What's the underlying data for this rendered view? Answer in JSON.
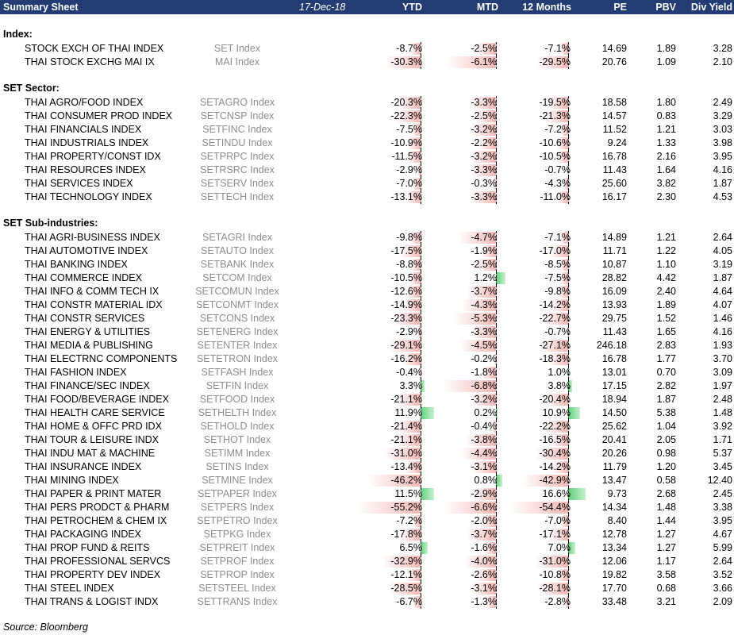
{
  "header": {
    "title": "Summary Sheet",
    "date": "17-Dec-18",
    "columns": [
      "YTD",
      "MTD",
      "12 Months",
      "PE",
      "PBV",
      "Div Yield"
    ]
  },
  "sections": [
    {
      "title": "Index:",
      "rows": [
        {
          "name": "STOCK EXCH OF THAI INDEX",
          "ticker": "SET Index",
          "ytd": -8.7,
          "mtd": -2.5,
          "m12": -7.1,
          "pe": "14.69",
          "pbv": "1.89",
          "dy": "3.28"
        },
        {
          "name": "THAI STOCK EXCHG MAI IX",
          "ticker": "MAI Index",
          "ytd": -30.3,
          "mtd": -6.1,
          "m12": -29.5,
          "pe": "20.76",
          "pbv": "1.09",
          "dy": "2.10"
        }
      ]
    },
    {
      "title": "SET Sector:",
      "rows": [
        {
          "name": "THAI AGRO/FOOD INDEX",
          "ticker": "SETAGRO Index",
          "ytd": -20.3,
          "mtd": -3.3,
          "m12": -19.5,
          "pe": "18.58",
          "pbv": "1.80",
          "dy": "2.49"
        },
        {
          "name": "THAI CONSUMER PROD INDEX",
          "ticker": "SETCNSP Index",
          "ytd": -22.3,
          "mtd": -2.5,
          "m12": -21.3,
          "pe": "14.57",
          "pbv": "0.83",
          "dy": "3.29"
        },
        {
          "name": "THAI FINANCIALS INDEX",
          "ticker": "SETFINC Index",
          "ytd": -7.5,
          "mtd": -3.2,
          "m12": -7.2,
          "pe": "11.52",
          "pbv": "1.21",
          "dy": "3.03"
        },
        {
          "name": "THAI INDUSTRIALS INDEX",
          "ticker": "SETINDU Index",
          "ytd": -10.9,
          "mtd": -2.2,
          "m12": -10.6,
          "pe": "9.24",
          "pbv": "1.33",
          "dy": "3.98"
        },
        {
          "name": "THAI PROPERTY/CONST IDX",
          "ticker": "SETPRPC Index",
          "ytd": -11.5,
          "mtd": -3.2,
          "m12": -10.5,
          "pe": "16.78",
          "pbv": "2.16",
          "dy": "3.95"
        },
        {
          "name": "THAI RESOURCES INDEX",
          "ticker": "SETRSRC Index",
          "ytd": -2.9,
          "mtd": -3.3,
          "m12": -0.7,
          "pe": "11.43",
          "pbv": "1.64",
          "dy": "4.16"
        },
        {
          "name": "THAI SERVICES INDEX",
          "ticker": "SETSERV Index",
          "ytd": -7.0,
          "mtd": -0.3,
          "m12": -4.3,
          "pe": "25.60",
          "pbv": "3.82",
          "dy": "1.87"
        },
        {
          "name": "THAI TECHNOLOGY INDEX",
          "ticker": "SETTECH Index",
          "ytd": -13.1,
          "mtd": -3.3,
          "m12": -11.0,
          "pe": "16.17",
          "pbv": "2.30",
          "dy": "4.53"
        }
      ]
    },
    {
      "title": "SET Sub-industries:",
      "rows": [
        {
          "name": "THAI AGRI-BUSINESS INDEX",
          "ticker": "SETAGRI Index",
          "ytd": -9.8,
          "mtd": -4.7,
          "m12": -7.1,
          "pe": "14.89",
          "pbv": "1.21",
          "dy": "2.64"
        },
        {
          "name": "THAI AUTOMOTIVE INDEX",
          "ticker": "SETAUTO Index",
          "ytd": -17.5,
          "mtd": -1.9,
          "m12": -17.0,
          "pe": "11.71",
          "pbv": "1.22",
          "dy": "4.05"
        },
        {
          "name": "THAI BANKING INDEX",
          "ticker": "SETBANK Index",
          "ytd": -8.8,
          "mtd": -2.5,
          "m12": -8.5,
          "pe": "10.87",
          "pbv": "1.10",
          "dy": "3.19"
        },
        {
          "name": "THAI COMMERCE INDEX",
          "ticker": "SETCOM Index",
          "ytd": -10.5,
          "mtd": 1.2,
          "m12": -7.5,
          "pe": "28.82",
          "pbv": "4.42",
          "dy": "1.87"
        },
        {
          "name": "THAI INFO & COMM TECH IX",
          "ticker": "SETCOMUN Index",
          "ytd": -12.6,
          "mtd": -3.7,
          "m12": -9.8,
          "pe": "16.09",
          "pbv": "2.40",
          "dy": "4.64"
        },
        {
          "name": "THAI CONSTR MATERIAL IDX",
          "ticker": "SETCONMT Index",
          "ytd": -14.9,
          "mtd": -4.3,
          "m12": -14.2,
          "pe": "13.93",
          "pbv": "1.89",
          "dy": "4.07"
        },
        {
          "name": "THAI CONSTR SERVICES",
          "ticker": "SETCONS Index",
          "ytd": -23.3,
          "mtd": -5.3,
          "m12": -22.7,
          "pe": "29.75",
          "pbv": "1.52",
          "dy": "1.46"
        },
        {
          "name": "THAI ENERGY & UTILITIES",
          "ticker": "SETENERG Index",
          "ytd": -2.9,
          "mtd": -3.3,
          "m12": -0.7,
          "pe": "11.43",
          "pbv": "1.65",
          "dy": "4.16"
        },
        {
          "name": "THAI MEDIA & PUBLISHING",
          "ticker": "SETENTER Index",
          "ytd": -29.1,
          "mtd": -4.5,
          "m12": -27.1,
          "pe": "246.18",
          "pbv": "2.83",
          "dy": "1.93"
        },
        {
          "name": "THAI ELECTRNC COMPONENTS",
          "ticker": "SETETRON Index",
          "ytd": -16.2,
          "mtd": -0.2,
          "m12": -18.3,
          "pe": "16.78",
          "pbv": "1.77",
          "dy": "3.70"
        },
        {
          "name": "THAI FASHION INDEX",
          "ticker": "SETFASH Index",
          "ytd": -0.4,
          "mtd": -1.8,
          "m12": 1.0,
          "pe": "13.01",
          "pbv": "0.70",
          "dy": "3.09"
        },
        {
          "name": "THAI FINANCE/SEC INDEX",
          "ticker": "SETFIN Index",
          "ytd": 3.3,
          "mtd": -6.8,
          "m12": 3.8,
          "pe": "17.15",
          "pbv": "2.82",
          "dy": "1.97"
        },
        {
          "name": "THAI FOOD/BEVERAGE INDEX",
          "ticker": "SETFOOD Index",
          "ytd": -21.1,
          "mtd": -3.2,
          "m12": -20.4,
          "pe": "18.94",
          "pbv": "1.87",
          "dy": "2.48"
        },
        {
          "name": "THAI HEALTH CARE SERVICE",
          "ticker": "SETHELTH Index",
          "ytd": 11.9,
          "mtd": 0.2,
          "m12": 10.9,
          "pe": "14.50",
          "pbv": "5.38",
          "dy": "1.48"
        },
        {
          "name": "THAI HOME & OFFC PRD IDX",
          "ticker": "SETHOLD Index",
          "ytd": -21.4,
          "mtd": -0.4,
          "m12": -22.2,
          "pe": "25.62",
          "pbv": "1.04",
          "dy": "3.92"
        },
        {
          "name": "THAI TOUR & LEISURE INDX",
          "ticker": "SETHOT Index",
          "ytd": -21.1,
          "mtd": -3.8,
          "m12": -16.5,
          "pe": "20.41",
          "pbv": "2.05",
          "dy": "1.71"
        },
        {
          "name": "THAI INDU MAT & MACHINE",
          "ticker": "SETIMM Index",
          "ytd": -31.0,
          "mtd": -4.4,
          "m12": -30.4,
          "pe": "20.26",
          "pbv": "0.98",
          "dy": "5.37"
        },
        {
          "name": "THAI INSURANCE INDEX",
          "ticker": "SETINS Index",
          "ytd": -13.4,
          "mtd": -3.1,
          "m12": -14.2,
          "pe": "11.79",
          "pbv": "1.20",
          "dy": "3.45"
        },
        {
          "name": "THAI MINING INDEX",
          "ticker": "SETMINE Index",
          "ytd": -46.2,
          "mtd": 0.8,
          "m12": -42.9,
          "pe": "13.47",
          "pbv": "0.58",
          "dy": "12.40"
        },
        {
          "name": "THAI PAPER & PRINT MATER",
          "ticker": "SETPAPER Index",
          "ytd": 11.5,
          "mtd": -2.9,
          "m12": 16.6,
          "pe": "9.73",
          "pbv": "2.68",
          "dy": "2.45"
        },
        {
          "name": "THAI PERS PRODCT & PHARM",
          "ticker": "SETPERS Index",
          "ytd": -55.2,
          "mtd": -6.6,
          "m12": -54.4,
          "pe": "14.34",
          "pbv": "1.48",
          "dy": "3.38"
        },
        {
          "name": "THAI PETROCHEM & CHEM IX",
          "ticker": "SETPETRO Index",
          "ytd": -7.2,
          "mtd": -2.0,
          "m12": -7.0,
          "pe": "8.40",
          "pbv": "1.44",
          "dy": "3.95"
        },
        {
          "name": "THAI PACKAGING INDEX",
          "ticker": "SETPKG Index",
          "ytd": -17.8,
          "mtd": -3.7,
          "m12": -17.1,
          "pe": "12.78",
          "pbv": "1.27",
          "dy": "4.67"
        },
        {
          "name": "THAI PROP FUND & REITS",
          "ticker": "SETPREIT Index",
          "ytd": 6.5,
          "mtd": -1.6,
          "m12": 7.0,
          "pe": "13.34",
          "pbv": "1.27",
          "dy": "5.99"
        },
        {
          "name": "THAI PROFESSIONAL SERVCS",
          "ticker": "SETPROF Index",
          "ytd": -32.9,
          "mtd": -4.0,
          "m12": -31.0,
          "pe": "12.06",
          "pbv": "1.17",
          "dy": "2.64"
        },
        {
          "name": "THAI PROPERTY DEV INDEX",
          "ticker": "SETPROP Index",
          "ytd": -12.1,
          "mtd": -2.6,
          "m12": -10.8,
          "pe": "19.82",
          "pbv": "3.58",
          "dy": "3.52"
        },
        {
          "name": "THAI STEEL INDEX",
          "ticker": "SETSTEEL Index",
          "ytd": -28.5,
          "mtd": -3.1,
          "m12": -28.1,
          "pe": "17.70",
          "pbv": "0.68",
          "dy": "3.66"
        },
        {
          "name": "THAI TRANS & LOGIST INDX",
          "ticker": "SETTRANS Index",
          "ytd": -6.7,
          "mtd": -1.3,
          "m12": -2.8,
          "pe": "33.48",
          "pbv": "3.21",
          "dy": "2.09"
        }
      ]
    }
  ],
  "source": "Source: Bloomberg",
  "colors": {
    "header_bg": "#233c73",
    "negative_bar": "#f2b8b5",
    "positive_bar": "#5fd07a",
    "ticker_text": "#8d8d8d"
  }
}
